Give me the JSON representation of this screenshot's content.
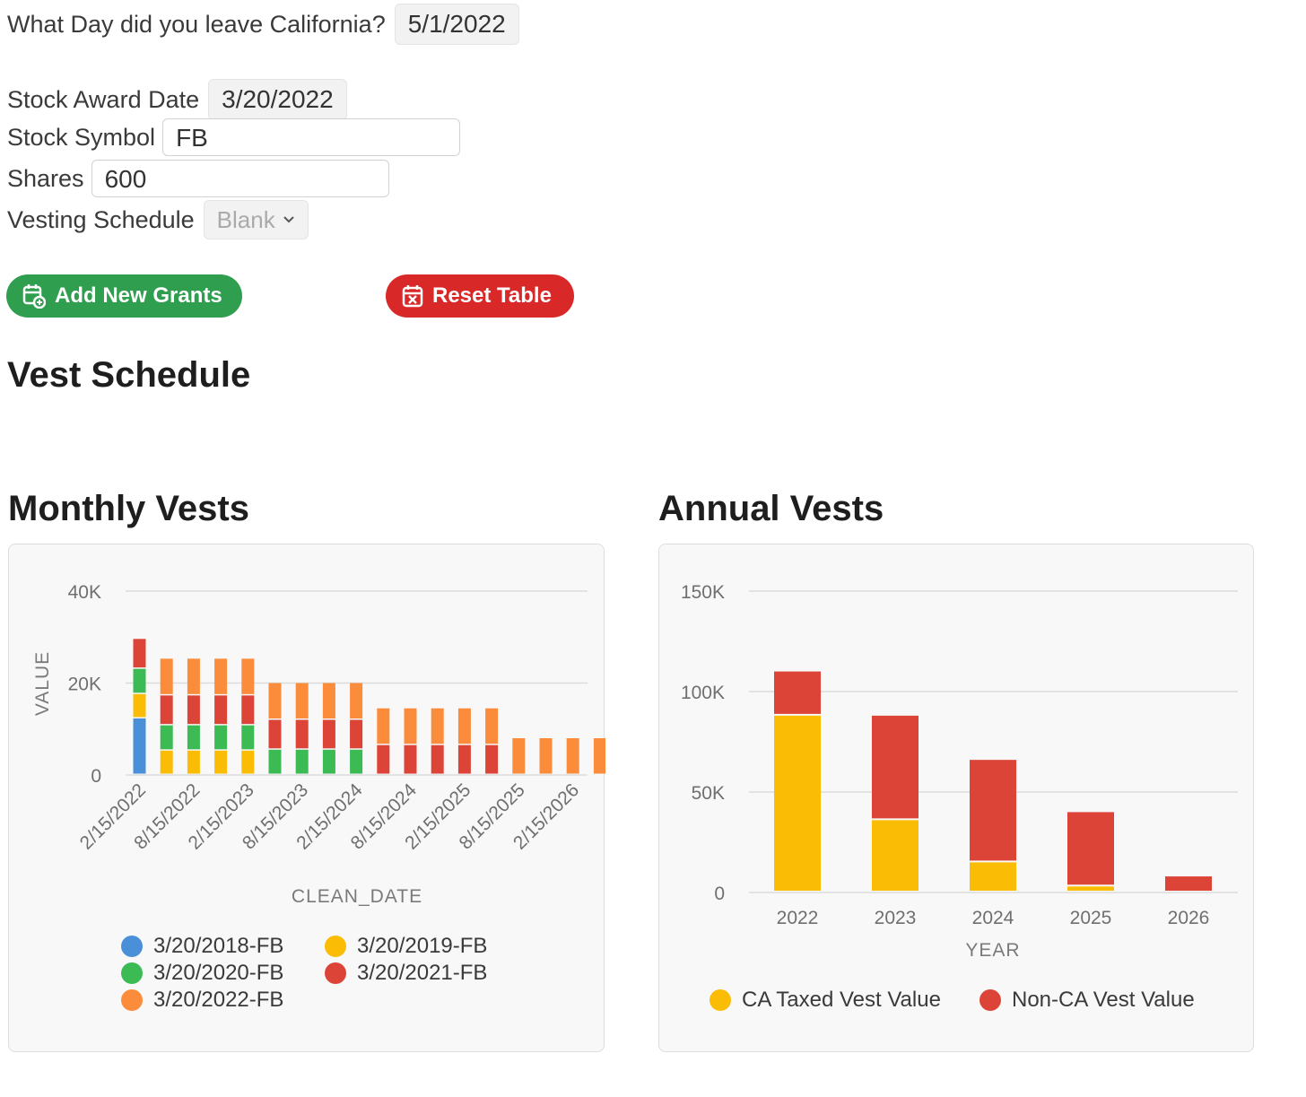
{
  "form": {
    "leave_label": "What Day did you leave California?",
    "leave_value": "5/1/2022",
    "award_label": "Stock Award Date",
    "award_value": "3/20/2022",
    "symbol_label": "Stock Symbol",
    "symbol_value": "FB",
    "shares_label": "Shares",
    "shares_value": "600",
    "vesting_label": "Vesting Schedule",
    "vesting_value": "Blank"
  },
  "buttons": {
    "add_label": "Add New Grants",
    "reset_label": "Reset Table",
    "add_color": "#2f9e4f",
    "reset_color": "#d92828"
  },
  "headings": {
    "vest_schedule": "Vest Schedule",
    "monthly": "Monthly Vests",
    "annual": "Annual Vests"
  },
  "chart_data": [
    {
      "type": "bar",
      "stacked": true,
      "title": "Monthly Vests",
      "xlabel": "CLEAN_DATE",
      "ylabel": "VALUE",
      "ylim": [
        0,
        40000
      ],
      "yticks": [
        "0",
        "20K",
        "40K"
      ],
      "xtick_labels": [
        "2/15/2022",
        "8/15/2022",
        "2/15/2023",
        "8/15/2023",
        "2/15/2024",
        "8/15/2024",
        "2/15/2025",
        "8/15/2025",
        "2/15/2026"
      ],
      "categories": [
        "2/15/2022",
        "5/15/2022",
        "8/15/2022",
        "11/15/2022",
        "2/15/2023",
        "5/15/2023",
        "8/15/2023",
        "11/15/2023",
        "2/15/2024",
        "5/15/2024",
        "8/15/2024",
        "11/15/2024",
        "2/15/2025",
        "5/15/2025",
        "8/15/2025",
        "11/15/2025",
        "2/15/2026",
        "5/15/2026"
      ],
      "legend_position": "bottom",
      "grid": true,
      "series": [
        {
          "name": "3/20/2018-FB",
          "color": "#4a90d9",
          "values": [
            12300,
            0,
            0,
            0,
            0,
            0,
            0,
            0,
            0,
            0,
            0,
            0,
            0,
            0,
            0,
            0,
            0,
            0
          ]
        },
        {
          "name": "3/20/2019-FB",
          "color": "#fbbc05",
          "values": [
            5300,
            5300,
            5300,
            5300,
            5300,
            0,
            0,
            0,
            0,
            0,
            0,
            0,
            0,
            0,
            0,
            0,
            0,
            0
          ]
        },
        {
          "name": "3/20/2020-FB",
          "color": "#3cba54",
          "values": [
            5500,
            5500,
            5500,
            5500,
            5500,
            5500,
            5500,
            5500,
            5500,
            0,
            0,
            0,
            0,
            0,
            0,
            0,
            0,
            0
          ]
        },
        {
          "name": "3/20/2021-FB",
          "color": "#db4437",
          "values": [
            6500,
            6500,
            6500,
            6500,
            6500,
            6500,
            6500,
            6500,
            6500,
            6500,
            6500,
            6500,
            6500,
            6500,
            0,
            0,
            0,
            0
          ]
        },
        {
          "name": "3/20/2022-FB",
          "color": "#fb8c3c",
          "values": [
            0,
            8000,
            8000,
            8000,
            8000,
            8000,
            8000,
            8000,
            8000,
            8000,
            8000,
            8000,
            8000,
            8000,
            8000,
            8000,
            8000,
            8000
          ]
        }
      ]
    },
    {
      "type": "bar",
      "stacked": true,
      "title": "Annual Vests",
      "xlabel": "YEAR",
      "ylabel": "",
      "ylim": [
        0,
        150000
      ],
      "yticks": [
        "0",
        "50K",
        "100K",
        "150K"
      ],
      "categories": [
        "2022",
        "2023",
        "2024",
        "2025",
        "2026"
      ],
      "legend_position": "bottom",
      "grid": true,
      "series": [
        {
          "name": "CA Taxed Vest Value",
          "color": "#fbbc05",
          "values": [
            88000,
            36000,
            15000,
            3000,
            0
          ]
        },
        {
          "name": "Non-CA Vest Value",
          "color": "#db4437",
          "values": [
            22000,
            52000,
            51000,
            37000,
            8000
          ]
        }
      ]
    }
  ]
}
